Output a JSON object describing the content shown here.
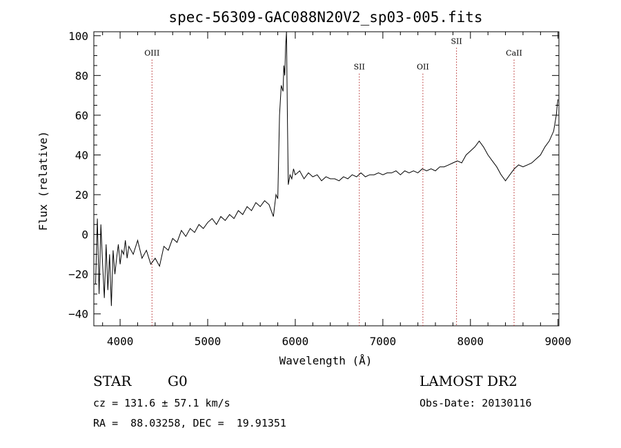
{
  "chart_data": {
    "type": "line",
    "title": "spec-56309-GAC088N20V2_sp03-005.fits",
    "xlabel": "Wavelength (Å)",
    "ylabel": "Flux (relative)",
    "xlim": [
      3700,
      9010
    ],
    "ylim": [
      -46,
      102
    ],
    "xticks": [
      4000,
      5000,
      6000,
      7000,
      8000,
      9000
    ],
    "yticks": [
      -40,
      -20,
      0,
      20,
      40,
      60,
      80,
      100
    ],
    "grid": false,
    "series": [
      {
        "points": [
          [
            3720,
            -25
          ],
          [
            3740,
            8
          ],
          [
            3760,
            -30
          ],
          [
            3780,
            5
          ],
          [
            3800,
            -15
          ],
          [
            3820,
            -32
          ],
          [
            3840,
            -5
          ],
          [
            3860,
            -28
          ],
          [
            3880,
            -10
          ],
          [
            3900,
            -36
          ],
          [
            3920,
            -8
          ],
          [
            3940,
            -20
          ],
          [
            3960,
            -12
          ],
          [
            3980,
            -5
          ],
          [
            4000,
            -15
          ],
          [
            4020,
            -8
          ],
          [
            4040,
            -10
          ],
          [
            4060,
            -3
          ],
          [
            4080,
            -12
          ],
          [
            4100,
            -6
          ],
          [
            4150,
            -10
          ],
          [
            4200,
            -3
          ],
          [
            4250,
            -12
          ],
          [
            4300,
            -8
          ],
          [
            4350,
            -15
          ],
          [
            4400,
            -12
          ],
          [
            4450,
            -16
          ],
          [
            4500,
            -6
          ],
          [
            4550,
            -8
          ],
          [
            4600,
            -2
          ],
          [
            4650,
            -4
          ],
          [
            4700,
            2
          ],
          [
            4750,
            -1
          ],
          [
            4800,
            3
          ],
          [
            4850,
            1
          ],
          [
            4900,
            5
          ],
          [
            4950,
            3
          ],
          [
            5000,
            6
          ],
          [
            5050,
            8
          ],
          [
            5100,
            5
          ],
          [
            5150,
            9
          ],
          [
            5200,
            7
          ],
          [
            5250,
            10
          ],
          [
            5300,
            8
          ],
          [
            5350,
            12
          ],
          [
            5400,
            10
          ],
          [
            5450,
            14
          ],
          [
            5500,
            12
          ],
          [
            5550,
            16
          ],
          [
            5600,
            14
          ],
          [
            5650,
            17
          ],
          [
            5700,
            15
          ],
          [
            5750,
            9
          ],
          [
            5780,
            20
          ],
          [
            5800,
            18
          ],
          [
            5820,
            60
          ],
          [
            5840,
            75
          ],
          [
            5860,
            72
          ],
          [
            5870,
            85
          ],
          [
            5880,
            80
          ],
          [
            5890,
            95
          ],
          [
            5900,
            102
          ],
          [
            5910,
            60
          ],
          [
            5920,
            25
          ],
          [
            5940,
            30
          ],
          [
            5960,
            28
          ],
          [
            5980,
            33
          ],
          [
            6000,
            30
          ],
          [
            6050,
            32
          ],
          [
            6100,
            28
          ],
          [
            6150,
            31
          ],
          [
            6200,
            29
          ],
          [
            6250,
            30
          ],
          [
            6300,
            27
          ],
          [
            6350,
            29
          ],
          [
            6400,
            28
          ],
          [
            6450,
            28
          ],
          [
            6500,
            27
          ],
          [
            6550,
            29
          ],
          [
            6600,
            28
          ],
          [
            6650,
            30
          ],
          [
            6700,
            29
          ],
          [
            6750,
            31
          ],
          [
            6800,
            29
          ],
          [
            6850,
            30
          ],
          [
            6900,
            30
          ],
          [
            6950,
            31
          ],
          [
            7000,
            30
          ],
          [
            7050,
            31
          ],
          [
            7100,
            31
          ],
          [
            7150,
            32
          ],
          [
            7200,
            30
          ],
          [
            7250,
            32
          ],
          [
            7300,
            31
          ],
          [
            7350,
            32
          ],
          [
            7400,
            31
          ],
          [
            7450,
            33
          ],
          [
            7500,
            32
          ],
          [
            7550,
            33
          ],
          [
            7600,
            32
          ],
          [
            7650,
            34
          ],
          [
            7700,
            34
          ],
          [
            7750,
            35
          ],
          [
            7800,
            36
          ],
          [
            7850,
            37
          ],
          [
            7900,
            36
          ],
          [
            7950,
            40
          ],
          [
            8000,
            42
          ],
          [
            8050,
            44
          ],
          [
            8100,
            47
          ],
          [
            8150,
            44
          ],
          [
            8200,
            40
          ],
          [
            8250,
            37
          ],
          [
            8300,
            34
          ],
          [
            8350,
            30
          ],
          [
            8400,
            27
          ],
          [
            8450,
            30
          ],
          [
            8500,
            33
          ],
          [
            8550,
            35
          ],
          [
            8600,
            34
          ],
          [
            8650,
            35
          ],
          [
            8700,
            36
          ],
          [
            8750,
            38
          ],
          [
            8800,
            40
          ],
          [
            8850,
            44
          ],
          [
            8900,
            47
          ],
          [
            8950,
            52
          ],
          [
            8980,
            60
          ],
          [
            8990,
            65
          ],
          [
            9000,
            68
          ]
        ]
      }
    ],
    "annotations": [
      {
        "label": "OIII",
        "x": 4364,
        "y": 90
      },
      {
        "label": "SII",
        "x": 6731,
        "y": 83
      },
      {
        "label": "OII",
        "x": 7457,
        "y": 83
      },
      {
        "label": "SII",
        "x": 7841,
        "y": 96
      },
      {
        "label": "CaII",
        "x": 8498,
        "y": 90
      }
    ]
  },
  "info": {
    "object_class": "STAR",
    "subclass": "G0",
    "survey": "LAMOST DR2",
    "redshift": "cz = 131.6 ± 57.1 km/s",
    "obs_date": "Obs-Date: 20130116",
    "coords": "RA =  88.03258, DEC =  19.91351"
  }
}
